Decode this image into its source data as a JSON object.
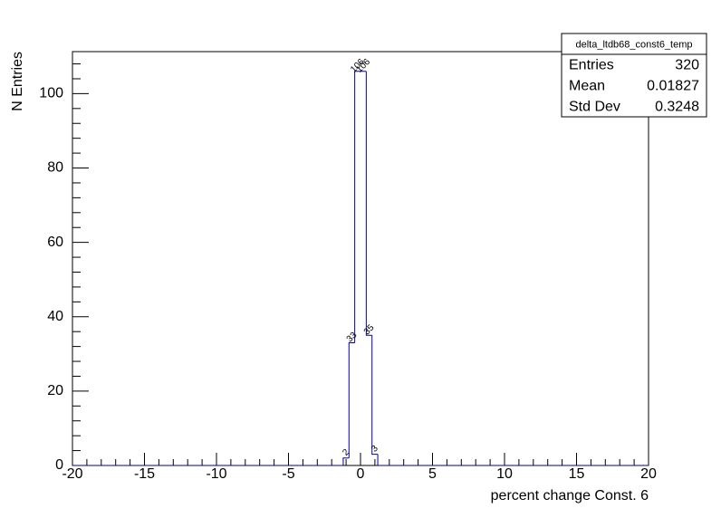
{
  "chart_data": {
    "type": "histogram",
    "xlabel": "percent change Const. 6",
    "ylabel": "N Entries",
    "color": "#000099",
    "bins": [
      -20,
      -19.6,
      -19.2,
      -18.8,
      -18.4,
      -18,
      -17.6,
      -17.2,
      -16.8,
      -16.4,
      -16,
      -15.6,
      -15.2,
      -14.8,
      -14.4,
      -14,
      -13.6,
      -13.2,
      -12.8,
      -12.4,
      -12,
      -11.6,
      -11.2,
      -10.8,
      -10.4,
      -10,
      -9.6,
      -9.2,
      -8.8,
      -8.4,
      -8,
      -7.6,
      -7.2,
      -6.8,
      -6.4,
      -6,
      -5.6,
      -5.2,
      -4.8,
      -4.4,
      -4,
      -3.6,
      -3.2,
      -2.8,
      -2.4,
      -2,
      -1.6,
      -1.2,
      -0.8,
      -0.4,
      0,
      0.4,
      0.8,
      1.2,
      1.6,
      2,
      2.4,
      2.8,
      3.2,
      3.6,
      4,
      4.4,
      4.8,
      5.2,
      5.6,
      6,
      6.4,
      6.8,
      7.2,
      7.6,
      8,
      8.4,
      8.8,
      9.2,
      9.6,
      10,
      10.4,
      10.8,
      11.2,
      11.6,
      12,
      12.4,
      12.8,
      13.2,
      13.6,
      14,
      14.4,
      14.8,
      15.2,
      15.6,
      16,
      16.4,
      16.8,
      17.2,
      17.6,
      18,
      18.4,
      18.8,
      19.2,
      19.6,
      20
    ],
    "counts": [
      0,
      0,
      0,
      0,
      0,
      0,
      0,
      0,
      0,
      0,
      0,
      0,
      0,
      0,
      0,
      0,
      0,
      0,
      0,
      0,
      0,
      0,
      0,
      0,
      0,
      0,
      0,
      0,
      0,
      0,
      0,
      0,
      0,
      0,
      0,
      0,
      0,
      0,
      0,
      0,
      0,
      0,
      0,
      0,
      0,
      0,
      0,
      2,
      33,
      106,
      106,
      35,
      3,
      0,
      0,
      0,
      0,
      0,
      0,
      0,
      0,
      0,
      0,
      0,
      0,
      0,
      0,
      0,
      0,
      0,
      0,
      0,
      0,
      0,
      0,
      0,
      0,
      0,
      0,
      0,
      0,
      0,
      0,
      0,
      0,
      0,
      0,
      0,
      0,
      0,
      0,
      0,
      0,
      0,
      0,
      0,
      0,
      0,
      0,
      0
    ],
    "xlim": [
      -20,
      20
    ],
    "xticks": [
      -20,
      -15,
      -10,
      -5,
      0,
      5,
      10,
      15,
      20
    ],
    "ylim": [
      0,
      111.3
    ],
    "yticks": [
      0,
      20,
      40,
      60,
      80,
      100
    ],
    "stats": {
      "title": "delta_ltdb68_const6_temp",
      "rows": [
        {
          "label": "Entries",
          "value": 320
        },
        {
          "label": "Mean",
          "value": 0.01827
        },
        {
          "label": "Std Dev",
          "value": 0.3248
        }
      ]
    }
  }
}
